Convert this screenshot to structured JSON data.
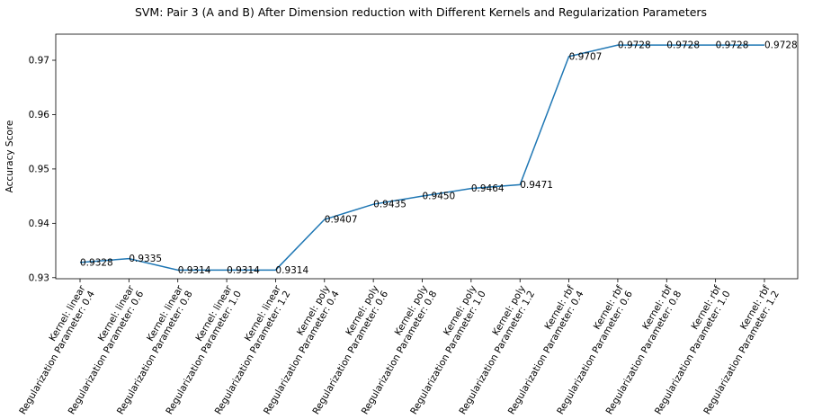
{
  "chart_data": {
    "type": "line",
    "title": "SVM: Pair 3 (A and B) After Dimension reduction with Different Kernels and Regularization Parameters",
    "xlabel": "",
    "ylabel": "Accuracy Score",
    "ylim": [
      0.9298,
      0.9748
    ],
    "yticks": [
      "0.93",
      "0.94",
      "0.95",
      "0.96",
      "0.97"
    ],
    "yticks_values": [
      0.93,
      0.94,
      0.95,
      0.96,
      0.97
    ],
    "grid": false,
    "line_color": "#1f77b4",
    "categories": [
      [
        "Kernel: linear",
        "Regularization Parameter: 0.4"
      ],
      [
        "Kernel: linear",
        "Regularization Parameter: 0.6"
      ],
      [
        "Kernel: linear",
        "Regularization Parameter: 0.8"
      ],
      [
        "Kernel: linear",
        "Regularization Parameter: 1.0"
      ],
      [
        "Kernel: linear",
        "Regularization Parameter: 1.2"
      ],
      [
        "Kernel: poly",
        "Regularization Parameter: 0.4"
      ],
      [
        "Kernel: poly",
        "Regularization Parameter: 0.6"
      ],
      [
        "Kernel: poly",
        "Regularization Parameter: 0.8"
      ],
      [
        "Kernel: poly",
        "Regularization Parameter: 1.0"
      ],
      [
        "Kernel: poly",
        "Regularization Parameter: 1.2"
      ],
      [
        "Kernel: rbf",
        "Regularization Parameter: 0.4"
      ],
      [
        "Kernel: rbf",
        "Regularization Parameter: 0.6"
      ],
      [
        "Kernel: rbf",
        "Regularization Parameter: 0.8"
      ],
      [
        "Kernel: rbf",
        "Regularization Parameter: 1.0"
      ],
      [
        "Kernel: rbf",
        "Regularization Parameter: 1.2"
      ]
    ],
    "values": [
      0.9328,
      0.9335,
      0.9314,
      0.9314,
      0.9314,
      0.9407,
      0.9435,
      0.945,
      0.9464,
      0.9471,
      0.9707,
      0.9728,
      0.9728,
      0.9728,
      0.9728
    ],
    "data_labels": [
      "0.9328",
      "0.9335",
      "0.9314",
      "0.9314",
      "0.9314",
      "0.9407",
      "0.9435",
      "0.9450",
      "0.9464",
      "0.9471",
      "0.9707",
      "0.9728",
      "0.9728",
      "0.9728",
      "0.9728"
    ]
  }
}
